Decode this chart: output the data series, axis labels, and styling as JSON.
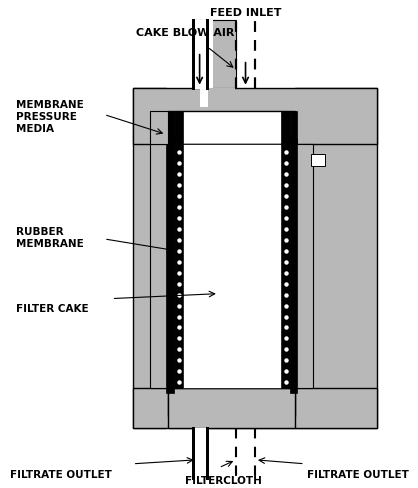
{
  "bg_color": "#ffffff",
  "gray": "#b8b8b8",
  "black": "#000000",
  "white": "#ffffff",
  "labels": {
    "feed_inlet": "FEED INLET",
    "cake_blow_air": "CAKE BLOW AIR",
    "membrane_pressure_media": "MEMBRANE\nPRESSURE\nMEDIA",
    "rubber_membrane": "RUBBER\nMEMBRANE",
    "filter_cake": "FILTER CAKE",
    "filtrate_outlet_left": "FILTRATE OUTLET",
    "filtrate_outlet_right": "FILTRATE OUTLET",
    "filtercloth": "FILTERCLOTH"
  },
  "font_size": 7.5
}
